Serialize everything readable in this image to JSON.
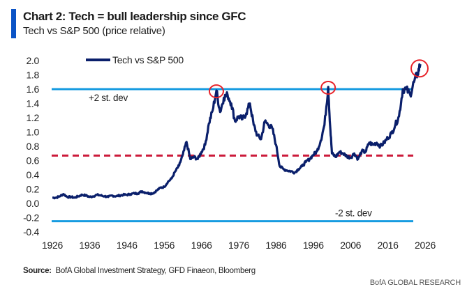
{
  "header": {
    "title": "Chart 2: Tech = bull leadership since GFC",
    "subtitle": "Tech vs S&P 500 (price relative)"
  },
  "footer": {
    "source_label": "Source:",
    "source_text": "BofA Global Investment Strategy, GFD Finaeon, Bloomberg",
    "brand": "BofA GLOBAL RESEARCH"
  },
  "colors": {
    "accent": "#0b54c6",
    "series": "#0a1f6b",
    "std_lines": "#169be0",
    "mean_line": "#cc1a3a",
    "highlight_circles": "#e8232a"
  },
  "chart_data": {
    "type": "line",
    "title": "Chart 2: Tech = bull leadership since GFC",
    "subtitle": "Tech vs S&P 500 (price relative)",
    "xlabel": "",
    "ylabel": "",
    "xlim": [
      1926,
      2026
    ],
    "ylim": [
      -0.4,
      2.0
    ],
    "x_ticks": [
      "1926",
      "1936",
      "1946",
      "1956",
      "1966",
      "1976",
      "1986",
      "1996",
      "2006",
      "2016",
      "2026"
    ],
    "y_ticks": [
      "2.0",
      "1.8",
      "1.6",
      "1.4",
      "1.2",
      "1.0",
      "0.8",
      "0.6",
      "0.4",
      "0.2",
      "0.0",
      "-0.2",
      "-0.4"
    ],
    "grid": false,
    "legend": {
      "position": "top-left",
      "entries": [
        "Tech vs S&P 500"
      ]
    },
    "series": [
      {
        "name": "Tech vs S&P 500",
        "x": [
          1926,
          1927,
          1928,
          1929,
          1930,
          1931,
          1932,
          1933,
          1934,
          1935,
          1936,
          1937,
          1938,
          1939,
          1940,
          1941,
          1942,
          1943,
          1944,
          1945,
          1946,
          1947,
          1948,
          1949,
          1950,
          1951,
          1952,
          1953,
          1954,
          1955,
          1956,
          1957,
          1958,
          1959,
          1960,
          1961,
          1962,
          1963,
          1964,
          1965,
          1966,
          1967,
          1968,
          1969,
          1970,
          1971,
          1972,
          1973,
          1974,
          1975,
          1976,
          1977,
          1978,
          1979,
          1980,
          1981,
          1982,
          1983,
          1984,
          1985,
          1986,
          1987,
          1988,
          1989,
          1990,
          1991,
          1992,
          1993,
          1994,
          1995,
          1996,
          1997,
          1998,
          1999,
          2000,
          2000.5,
          2001,
          2002,
          2003,
          2004,
          2005,
          2006,
          2007,
          2008,
          2009,
          2010,
          2011,
          2012,
          2013,
          2014,
          2015,
          2016,
          2017,
          2018,
          2019,
          2020,
          2021,
          2022,
          2023,
          2024,
          2024.7
        ],
        "values": [
          0.08,
          0.08,
          0.1,
          0.13,
          0.09,
          0.09,
          0.08,
          0.1,
          0.12,
          0.11,
          0.09,
          0.1,
          0.12,
          0.11,
          0.1,
          0.09,
          0.11,
          0.1,
          0.11,
          0.12,
          0.12,
          0.13,
          0.14,
          0.14,
          0.17,
          0.15,
          0.14,
          0.14,
          0.18,
          0.22,
          0.23,
          0.3,
          0.35,
          0.45,
          0.53,
          0.68,
          0.86,
          0.62,
          0.65,
          0.62,
          0.72,
          0.82,
          1.12,
          1.3,
          1.58,
          1.28,
          1.48,
          1.52,
          1.4,
          1.15,
          1.22,
          1.18,
          1.26,
          1.4,
          1.1,
          0.95,
          0.9,
          1.15,
          1.1,
          1.05,
          0.82,
          0.52,
          0.48,
          0.46,
          0.45,
          0.43,
          0.48,
          0.52,
          0.58,
          0.62,
          0.68,
          0.73,
          0.88,
          1.1,
          1.63,
          1.1,
          0.7,
          0.65,
          0.72,
          0.7,
          0.66,
          0.64,
          0.7,
          0.62,
          0.73,
          0.72,
          0.85,
          0.82,
          0.85,
          0.8,
          0.85,
          0.92,
          0.98,
          1.1,
          1.22,
          1.6,
          1.6,
          1.52,
          1.7,
          1.82,
          1.95
        ]
      }
    ],
    "reference_lines": [
      {
        "name": "+2 st. dev",
        "value": 1.6,
        "style": "solid",
        "label": "+2 st. dev"
      },
      {
        "name": "mean",
        "value": 0.67,
        "style": "dashed",
        "label": ""
      },
      {
        "name": "-2 st. dev",
        "value": -0.25,
        "style": "solid",
        "label": "-2 st. dev"
      }
    ],
    "annotations": [
      {
        "type": "circle",
        "x": 1970,
        "y": 1.57,
        "note": "peak highlight"
      },
      {
        "type": "circle",
        "x": 2000,
        "y": 1.62,
        "note": "peak highlight"
      },
      {
        "type": "circle",
        "x": 2024.5,
        "y": 1.88,
        "note": "peak highlight"
      }
    ]
  }
}
